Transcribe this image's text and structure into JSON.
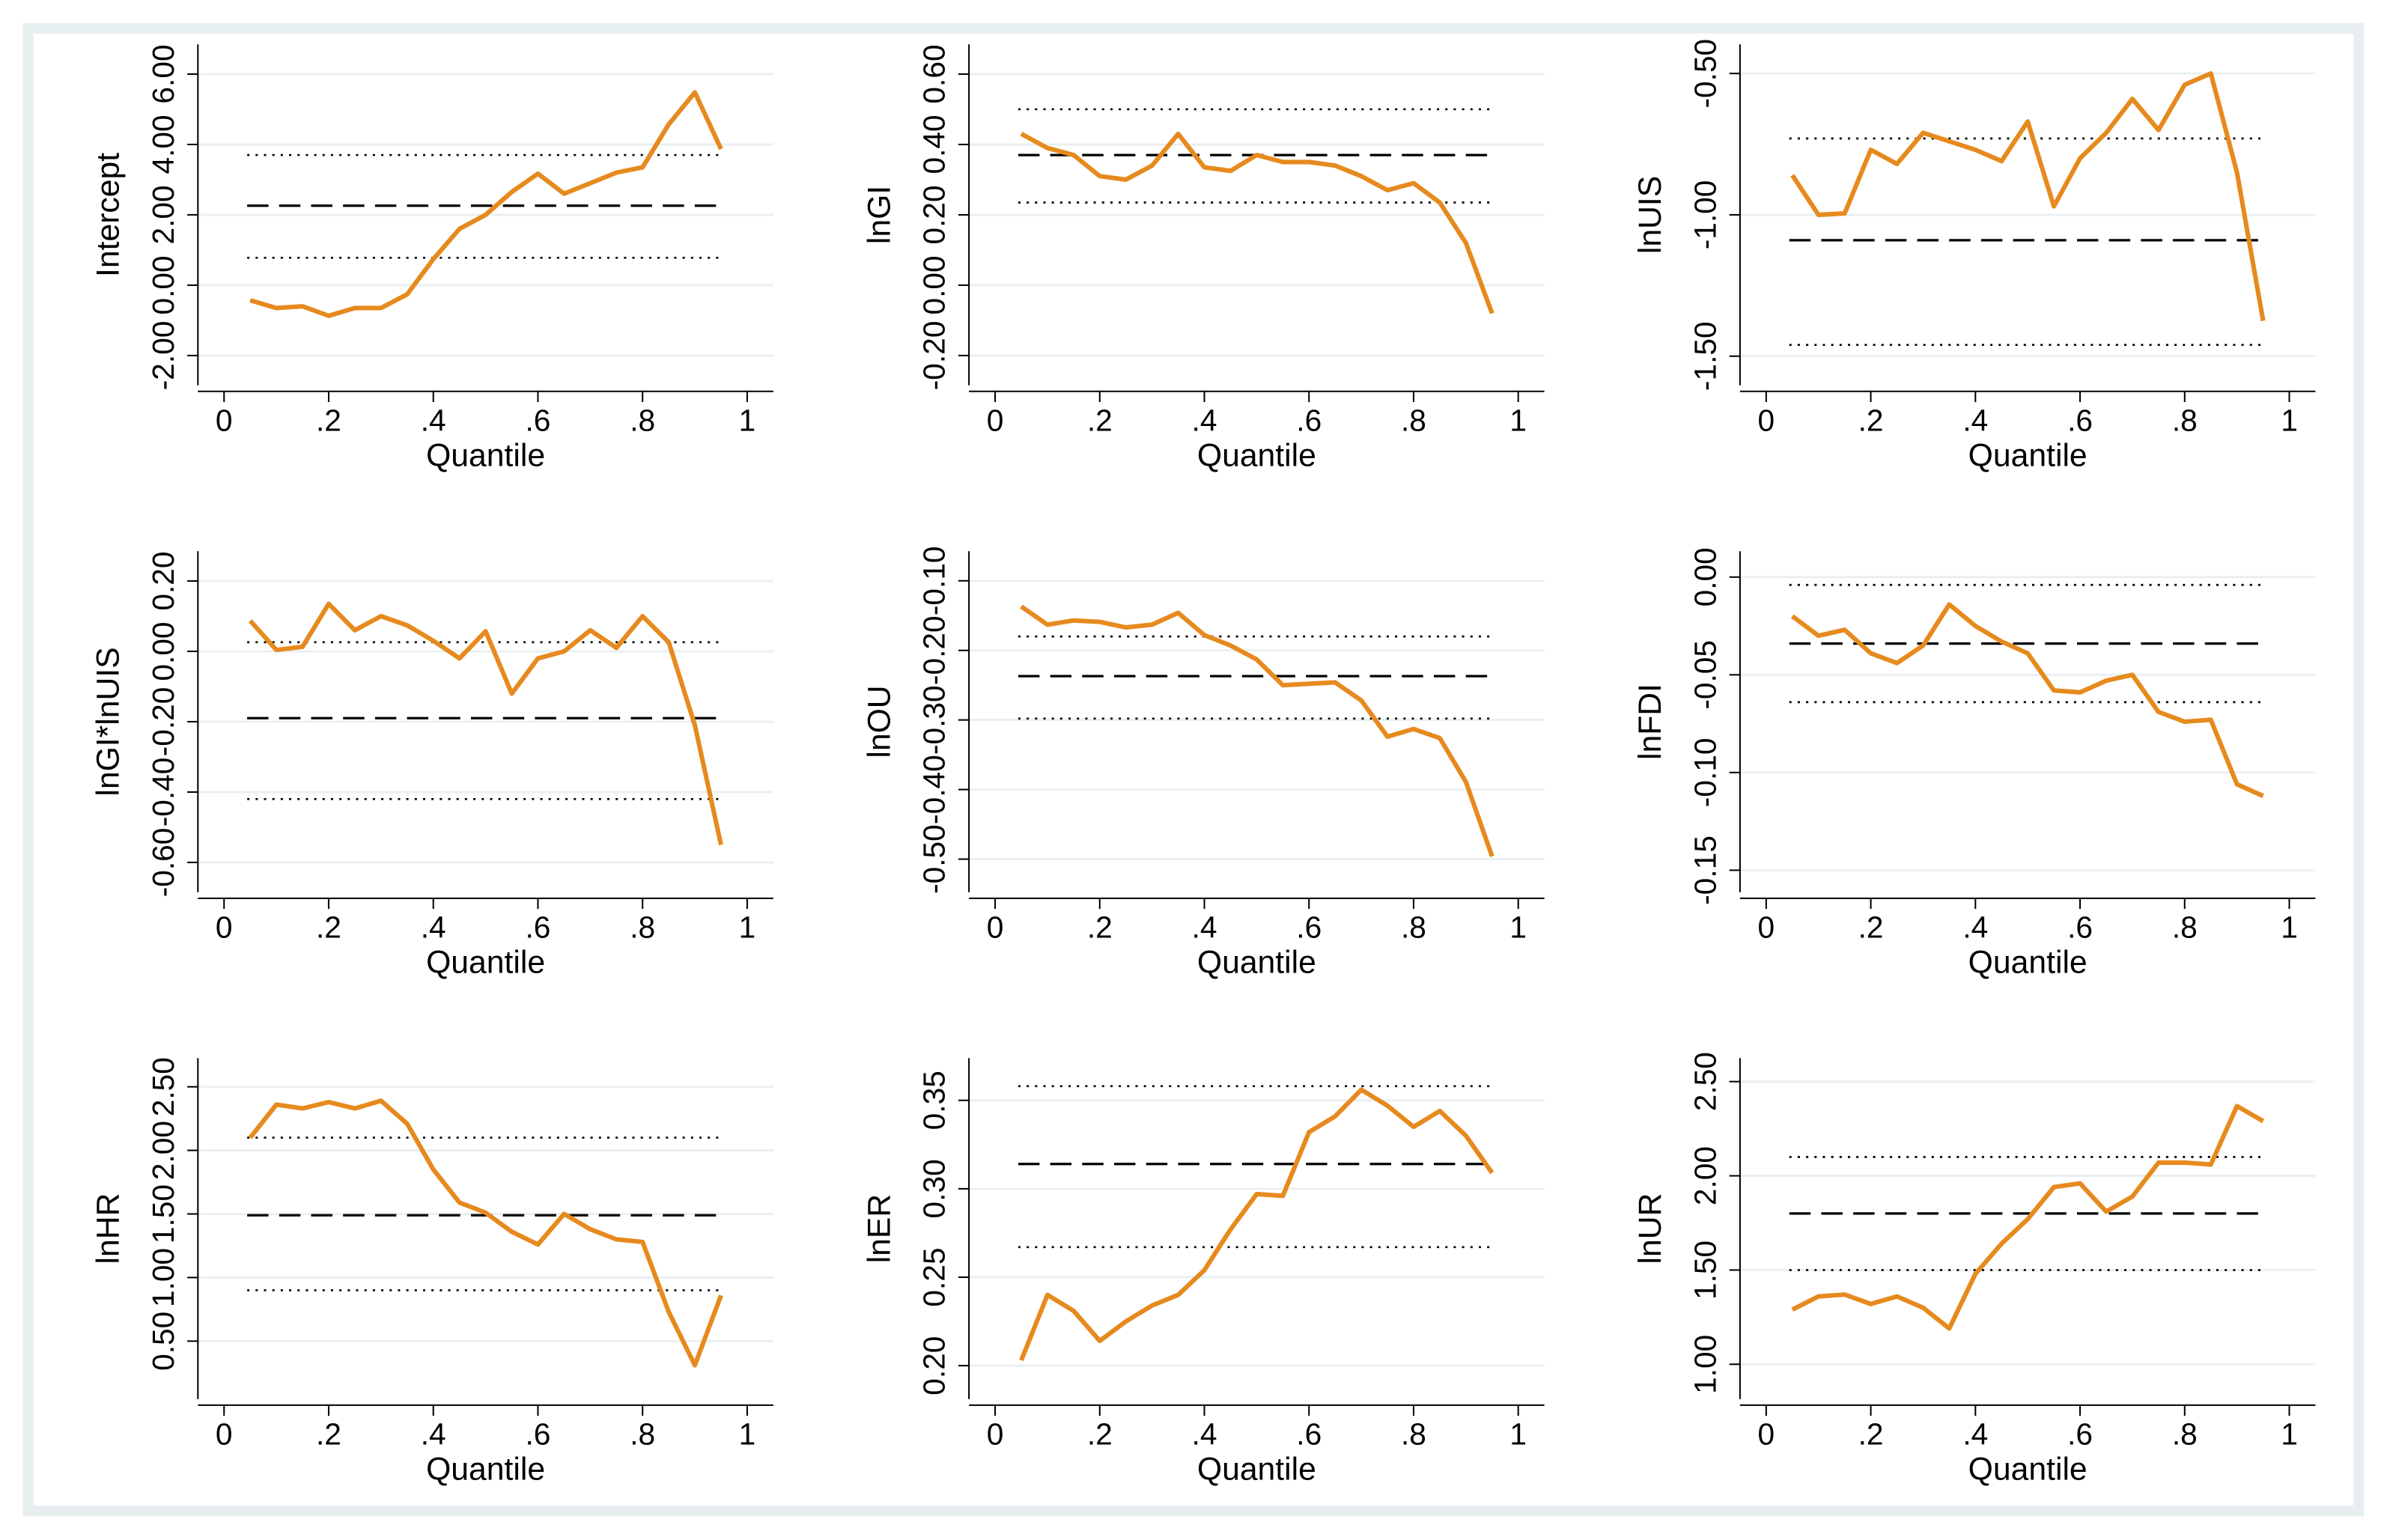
{
  "chart_data": [
    {
      "type": "line",
      "y_label": "Intercept",
      "x_label": "Quantile",
      "color": "#e68a1e",
      "x": [
        0.05,
        0.1,
        0.15,
        0.2,
        0.25,
        0.3,
        0.35,
        0.4,
        0.45,
        0.5,
        0.55,
        0.6,
        0.65,
        0.7,
        0.75,
        0.8,
        0.85,
        0.9,
        0.95
      ],
      "values": [
        -0.43,
        -0.65,
        -0.6,
        -0.87,
        -0.65,
        -0.65,
        -0.26,
        0.74,
        1.6,
        2.0,
        2.65,
        3.17,
        2.6,
        2.9,
        3.2,
        3.35,
        4.57,
        5.48,
        3.87
      ],
      "hlines": [
        {
          "value": 2.26,
          "style": "dashed"
        },
        {
          "value": 3.7,
          "style": "dotted"
        },
        {
          "value": 0.78,
          "style": "dotted"
        }
      ],
      "xlim": [
        -0.05,
        1.05
      ],
      "xticks": [
        0,
        {
          "value": 0.2,
          "label": ".2"
        },
        {
          "value": 0.4,
          "label": ".4"
        },
        {
          "value": 0.6,
          "label": ".6"
        },
        {
          "value": 0.8,
          "label": ".8"
        },
        1
      ],
      "ylim": [
        -2.5,
        6.5
      ],
      "yticks": [
        {
          "value": -2,
          "label": "-2.00"
        },
        {
          "value": 0,
          "label": "0.00"
        },
        {
          "value": 2,
          "label": "2.00"
        },
        {
          "value": 4,
          "label": "4.00"
        },
        {
          "value": 6,
          "label": "6.00"
        }
      ],
      "grid": true
    },
    {
      "type": "line",
      "y_label": "lnGI",
      "x_label": "Quantile",
      "color": "#e68a1e",
      "x": [
        0.05,
        0.1,
        0.15,
        0.2,
        0.25,
        0.3,
        0.35,
        0.4,
        0.45,
        0.5,
        0.55,
        0.6,
        0.65,
        0.7,
        0.75,
        0.8,
        0.85,
        0.9,
        0.95
      ],
      "values": [
        0.43,
        0.39,
        0.37,
        0.31,
        0.3,
        0.34,
        0.43,
        0.335,
        0.325,
        0.37,
        0.35,
        0.35,
        0.34,
        0.31,
        0.27,
        0.29,
        0.235,
        0.12,
        -0.08
      ],
      "hlines": [
        {
          "value": 0.37,
          "style": "dashed"
        },
        {
          "value": 0.5,
          "style": "dotted"
        },
        {
          "value": 0.235,
          "style": "dotted"
        }
      ],
      "xlim": [
        -0.05,
        1.05
      ],
      "xticks": [
        0,
        {
          "value": 0.2,
          "label": ".2"
        },
        {
          "value": 0.4,
          "label": ".4"
        },
        {
          "value": 0.6,
          "label": ".6"
        },
        {
          "value": 0.8,
          "label": ".8"
        },
        1
      ],
      "ylim": [
        -0.25,
        0.65
      ],
      "yticks": [
        {
          "value": -0.2,
          "label": "-0.20"
        },
        {
          "value": 0,
          "label": "0.00"
        },
        {
          "value": 0.2,
          "label": "0.20"
        },
        {
          "value": 0.4,
          "label": "0.40"
        },
        {
          "value": 0.6,
          "label": "0.60"
        }
      ],
      "grid": true
    },
    {
      "type": "line",
      "y_label": "lnUIS",
      "x_label": "Quantile",
      "color": "#e68a1e",
      "x": [
        0.05,
        0.1,
        0.15,
        0.2,
        0.25,
        0.3,
        0.35,
        0.4,
        0.45,
        0.5,
        0.55,
        0.6,
        0.65,
        0.7,
        0.75,
        0.8,
        0.85,
        0.9,
        0.95
      ],
      "values": [
        -0.86,
        -1.0,
        -0.995,
        -0.77,
        -0.82,
        -0.71,
        -0.74,
        -0.77,
        -0.81,
        -0.67,
        -0.97,
        -0.8,
        -0.71,
        -0.59,
        -0.7,
        -0.54,
        -0.5,
        -0.85,
        -1.375
      ],
      "hlines": [
        {
          "value": -1.09,
          "style": "dashed"
        },
        {
          "value": -0.73,
          "style": "dotted"
        },
        {
          "value": -1.46,
          "style": "dotted"
        }
      ],
      "xlim": [
        -0.05,
        1.05
      ],
      "xticks": [
        0,
        {
          "value": 0.2,
          "label": ".2"
        },
        {
          "value": 0.4,
          "label": ".4"
        },
        {
          "value": 0.6,
          "label": ".6"
        },
        {
          "value": 0.8,
          "label": ".8"
        },
        1
      ],
      "ylim": [
        -1.56,
        -0.44
      ],
      "yticks": [
        {
          "value": -1.5,
          "label": "-1.50"
        },
        {
          "value": -1,
          "label": "-1.00"
        },
        {
          "value": -0.5,
          "label": "-0.50"
        }
      ],
      "grid": true
    },
    {
      "type": "line",
      "y_label": "lnGI*lnUIS",
      "x_label": "Quantile",
      "color": "#e68a1e",
      "x": [
        0.05,
        0.1,
        0.15,
        0.2,
        0.25,
        0.3,
        0.35,
        0.4,
        0.45,
        0.5,
        0.55,
        0.6,
        0.65,
        0.7,
        0.75,
        0.8,
        0.85,
        0.9,
        0.95
      ],
      "values": [
        0.087,
        0.004,
        0.013,
        0.135,
        0.06,
        0.1,
        0.074,
        0.03,
        -0.02,
        0.057,
        -0.12,
        -0.02,
        0.0,
        0.06,
        0.01,
        0.1,
        0.026,
        -0.21,
        -0.55
      ],
      "hlines": [
        {
          "value": -0.19,
          "style": "dashed"
        },
        {
          "value": 0.026,
          "style": "dotted"
        },
        {
          "value": -0.42,
          "style": "dotted"
        }
      ],
      "xlim": [
        -0.05,
        1.05
      ],
      "xticks": [
        0,
        {
          "value": 0.2,
          "label": ".2"
        },
        {
          "value": 0.4,
          "label": ".4"
        },
        {
          "value": 0.6,
          "label": ".6"
        },
        {
          "value": 0.8,
          "label": ".8"
        },
        1
      ],
      "ylim": [
        -0.65,
        0.25
      ],
      "yticks": [
        {
          "value": -0.6,
          "label": "-0.60"
        },
        {
          "value": -0.4,
          "label": "-0.40"
        },
        {
          "value": -0.2,
          "label": "-0.20"
        },
        {
          "value": 0,
          "label": "0.00"
        },
        {
          "value": 0.2,
          "label": "0.20"
        }
      ],
      "grid": true
    },
    {
      "type": "line",
      "y_label": "lnOU",
      "x_label": "Quantile",
      "color": "#e68a1e",
      "x": [
        0.05,
        0.1,
        0.15,
        0.2,
        0.25,
        0.3,
        0.35,
        0.4,
        0.45,
        0.5,
        0.55,
        0.6,
        0.65,
        0.7,
        0.75,
        0.8,
        0.85,
        0.9,
        0.95
      ],
      "values": [
        -0.137,
        -0.163,
        -0.157,
        -0.159,
        -0.167,
        -0.163,
        -0.146,
        -0.178,
        -0.193,
        -0.213,
        -0.25,
        -0.248,
        -0.246,
        -0.272,
        -0.324,
        -0.313,
        -0.326,
        -0.389,
        -0.496
      ],
      "hlines": [
        {
          "value": -0.237,
          "style": "dashed"
        },
        {
          "value": -0.18,
          "style": "dotted"
        },
        {
          "value": -0.298,
          "style": "dotted"
        }
      ],
      "xlim": [
        -0.05,
        1.05
      ],
      "xticks": [
        0,
        {
          "value": 0.2,
          "label": ".2"
        },
        {
          "value": 0.4,
          "label": ".4"
        },
        {
          "value": 0.6,
          "label": ".6"
        },
        {
          "value": 0.8,
          "label": ".8"
        },
        1
      ],
      "ylim": [
        -0.53,
        -0.075
      ],
      "yticks": [
        {
          "value": -0.5,
          "label": "-0.50"
        },
        {
          "value": -0.4,
          "label": "-0.40"
        },
        {
          "value": -0.3,
          "label": "-0.30"
        },
        {
          "value": -0.2,
          "label": "-0.20"
        },
        {
          "value": -0.1,
          "label": "-0.10"
        }
      ],
      "grid": true
    },
    {
      "type": "line",
      "y_label": "lnFDI",
      "x_label": "Quantile",
      "color": "#e68a1e",
      "x": [
        0.05,
        0.1,
        0.15,
        0.2,
        0.25,
        0.3,
        0.35,
        0.4,
        0.45,
        0.5,
        0.55,
        0.6,
        0.65,
        0.7,
        0.75,
        0.8,
        0.85,
        0.9,
        0.95
      ],
      "values": [
        -0.02,
        -0.03,
        -0.027,
        -0.039,
        -0.044,
        -0.035,
        -0.014,
        -0.025,
        -0.033,
        -0.039,
        -0.058,
        -0.059,
        -0.053,
        -0.05,
        -0.069,
        -0.074,
        -0.073,
        -0.106,
        -0.112
      ],
      "hlines": [
        {
          "value": -0.034,
          "style": "dashed"
        },
        {
          "value": -0.004,
          "style": "dotted"
        },
        {
          "value": -0.064,
          "style": "dotted"
        }
      ],
      "xlim": [
        -0.05,
        1.05
      ],
      "xticks": [
        0,
        {
          "value": 0.2,
          "label": ".2"
        },
        {
          "value": 0.4,
          "label": ".4"
        },
        {
          "value": 0.6,
          "label": ".6"
        },
        {
          "value": 0.8,
          "label": ".8"
        },
        1
      ],
      "ylim": [
        -0.155,
        0.007
      ],
      "yticks": [
        {
          "value": -0.15,
          "label": "-0.15"
        },
        {
          "value": -0.1,
          "label": "-0.10"
        },
        {
          "value": -0.05,
          "label": "-0.05"
        },
        {
          "value": 0,
          "label": "0.00"
        }
      ],
      "grid": true
    },
    {
      "type": "line",
      "y_label": "lnHR",
      "x_label": "Quantile",
      "color": "#e68a1e",
      "x": [
        0.05,
        0.1,
        0.15,
        0.2,
        0.25,
        0.3,
        0.35,
        0.4,
        0.45,
        0.5,
        0.55,
        0.6,
        0.65,
        0.7,
        0.75,
        0.8,
        0.85,
        0.9,
        0.95
      ],
      "values": [
        2.1,
        2.36,
        2.33,
        2.38,
        2.33,
        2.39,
        2.21,
        1.85,
        1.59,
        1.51,
        1.36,
        1.26,
        1.5,
        1.38,
        1.3,
        1.28,
        0.73,
        0.31,
        0.86
      ],
      "hlines": [
        {
          "value": 1.49,
          "style": "dashed"
        },
        {
          "value": 2.1,
          "style": "dotted"
        },
        {
          "value": 0.9,
          "style": "dotted"
        }
      ],
      "xlim": [
        -0.05,
        1.05
      ],
      "xticks": [
        0,
        {
          "value": 0.2,
          "label": ".2"
        },
        {
          "value": 0.4,
          "label": ".4"
        },
        {
          "value": 0.6,
          "label": ".6"
        },
        {
          "value": 0.8,
          "label": ".8"
        },
        1
      ],
      "ylim": [
        0.14,
        2.63
      ],
      "yticks": [
        {
          "value": 0.5,
          "label": "0.50"
        },
        {
          "value": 1,
          "label": "1.00"
        },
        {
          "value": 1.5,
          "label": "1.50"
        },
        {
          "value": 2,
          "label": "2.00"
        },
        {
          "value": 2.5,
          "label": "2.50"
        }
      ],
      "grid": true
    },
    {
      "type": "line",
      "y_label": "lnER",
      "x_label": "Quantile",
      "color": "#e68a1e",
      "x": [
        0.05,
        0.1,
        0.15,
        0.2,
        0.25,
        0.3,
        0.35,
        0.4,
        0.45,
        0.5,
        0.55,
        0.6,
        0.65,
        0.7,
        0.75,
        0.8,
        0.85,
        0.9,
        0.95
      ],
      "values": [
        0.203,
        0.24,
        0.231,
        0.214,
        0.225,
        0.234,
        0.24,
        0.254,
        0.277,
        0.297,
        0.296,
        0.332,
        0.341,
        0.356,
        0.347,
        0.335,
        0.344,
        0.33,
        0.309
      ],
      "hlines": [
        {
          "value": 0.314,
          "style": "dashed"
        },
        {
          "value": 0.358,
          "style": "dotted"
        },
        {
          "value": 0.267,
          "style": "dotted"
        }
      ],
      "xlim": [
        -0.05,
        1.05
      ],
      "xticks": [
        0,
        {
          "value": 0.2,
          "label": ".2"
        },
        {
          "value": 0.4,
          "label": ".4"
        },
        {
          "value": 0.6,
          "label": ".6"
        },
        {
          "value": 0.8,
          "label": ".8"
        },
        1
      ],
      "ylim": [
        0.188,
        0.367
      ],
      "yticks": [
        {
          "value": 0.2,
          "label": "0.20"
        },
        0.25,
        {
          "value": 0.3,
          "label": "0.30"
        },
        0.35
      ],
      "grid": true
    },
    {
      "type": "line",
      "y_label": "lnUR",
      "x_label": "Quantile",
      "color": "#e68a1e",
      "x": [
        0.05,
        0.1,
        0.15,
        0.2,
        0.25,
        0.3,
        0.35,
        0.4,
        0.45,
        0.5,
        0.55,
        0.6,
        0.65,
        0.7,
        0.75,
        0.8,
        0.85,
        0.9,
        0.95
      ],
      "values": [
        1.29,
        1.36,
        1.37,
        1.32,
        1.36,
        1.3,
        1.19,
        1.48,
        1.64,
        1.77,
        1.94,
        1.96,
        1.81,
        1.89,
        2.07,
        2.07,
        2.06,
        2.37,
        2.29
      ],
      "hlines": [
        {
          "value": 1.8,
          "style": "dashed"
        },
        {
          "value": 2.1,
          "style": "dotted"
        },
        {
          "value": 1.5,
          "style": "dotted"
        }
      ],
      "xlim": [
        -0.05,
        1.05
      ],
      "xticks": [
        0,
        {
          "value": 0.2,
          "label": ".2"
        },
        {
          "value": 0.4,
          "label": ".4"
        },
        {
          "value": 0.6,
          "label": ".6"
        },
        {
          "value": 0.8,
          "label": ".8"
        },
        1
      ],
      "ylim": [
        0.88,
        2.56
      ],
      "yticks": [
        {
          "value": 1,
          "label": "1.00"
        },
        {
          "value": 1.5,
          "label": "1.50"
        },
        {
          "value": 2,
          "label": "2.00"
        },
        {
          "value": 2.5,
          "label": "2.50"
        }
      ],
      "grid": true
    }
  ]
}
